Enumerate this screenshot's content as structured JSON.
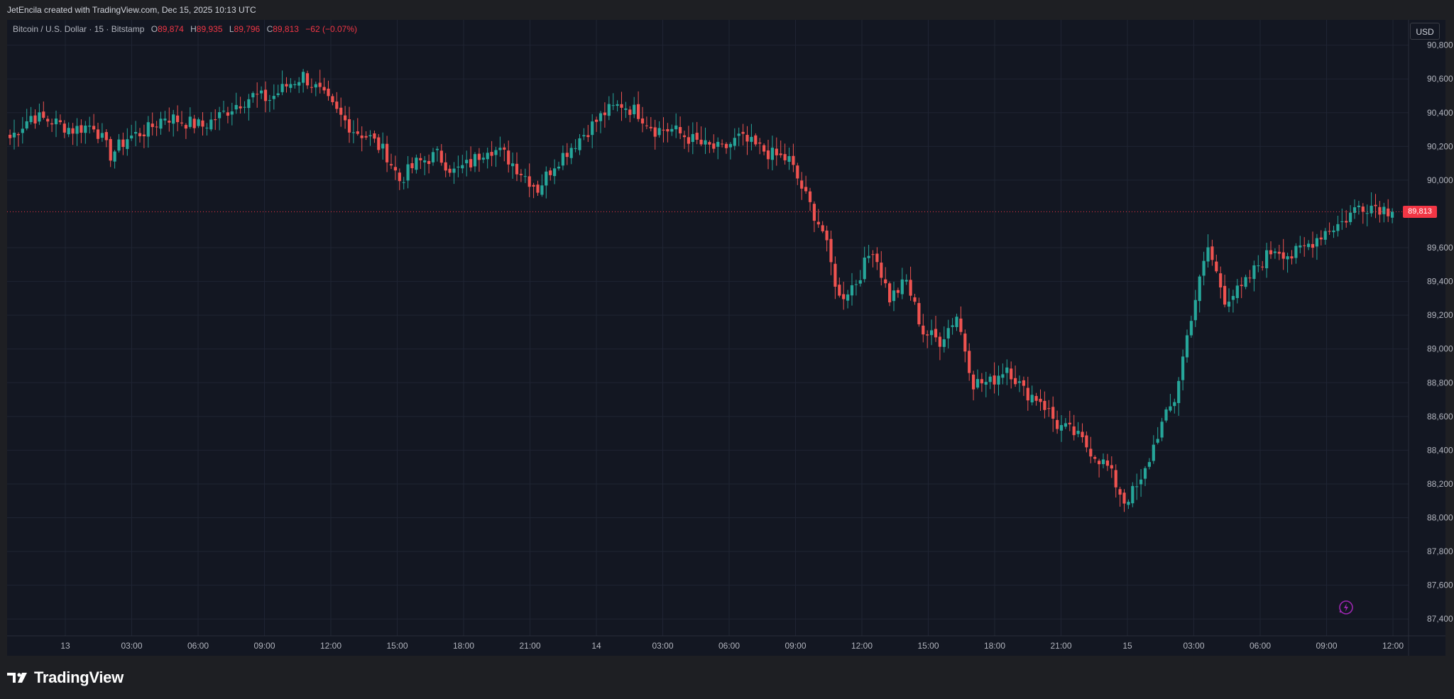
{
  "header": {
    "attribution": "JetEncila created with TradingView.com, Dec 15, 2025 10:13 UTC"
  },
  "legend": {
    "symbol": "Bitcoin / U.S. Dollar · 15 · Bitstamp",
    "open_label": "O",
    "open": "89,874",
    "high_label": "H",
    "high": "89,935",
    "low_label": "L",
    "low": "89,796",
    "close_label": "C",
    "close": "89,813",
    "change": "−62 (−0.07%)"
  },
  "currency_button": "USD",
  "last_price_tag": "89,813",
  "footer": {
    "brand": "TradingView"
  },
  "icons": {
    "logo": "tradingview-logo-icon",
    "flash": "flash-icon"
  },
  "colors": {
    "up": "#26a69a",
    "down": "#ef5350",
    "background": "#131722",
    "grid": "#1f2433",
    "tag": "#f23645"
  },
  "chart_data": {
    "type": "candlestick",
    "y_range": [
      87300,
      90950
    ],
    "y_ticks": [
      "90,800",
      "90,600",
      "90,400",
      "90,200",
      "90,000",
      "89,600",
      "89,400",
      "89,200",
      "89,000",
      "88,800",
      "88,600",
      "88,400",
      "88,200",
      "88,000",
      "87,800",
      "87,600",
      "87,400"
    ],
    "x_ticks": [
      "13",
      "03:00",
      "06:00",
      "09:00",
      "12:00",
      "15:00",
      "18:00",
      "21:00",
      "14",
      "03:00",
      "06:00",
      "09:00",
      "12:00",
      "15:00",
      "18:00",
      "21:00",
      "15",
      "03:00",
      "06:00",
      "09:00",
      "12:00"
    ],
    "last_price": 89813,
    "anchors": [
      [
        0,
        90250
      ],
      [
        5,
        90380
      ],
      [
        10,
        90350
      ],
      [
        15,
        90300
      ],
      [
        20,
        90330
      ],
      [
        24,
        90150
      ],
      [
        28,
        90250
      ],
      [
        33,
        90300
      ],
      [
        37,
        90380
      ],
      [
        41,
        90350
      ],
      [
        46,
        90320
      ],
      [
        50,
        90380
      ],
      [
        54,
        90450
      ],
      [
        58,
        90500
      ],
      [
        62,
        90480
      ],
      [
        66,
        90560
      ],
      [
        70,
        90620
      ],
      [
        74,
        90520
      ],
      [
        78,
        90400
      ],
      [
        82,
        90300
      ],
      [
        86,
        90250
      ],
      [
        90,
        90150
      ],
      [
        93,
        90000
      ],
      [
        97,
        90100
      ],
      [
        102,
        90150
      ],
      [
        106,
        90050
      ],
      [
        110,
        90100
      ],
      [
        114,
        90200
      ],
      [
        118,
        90150
      ],
      [
        122,
        90050
      ],
      [
        126,
        89950
      ],
      [
        130,
        90100
      ],
      [
        134,
        90200
      ],
      [
        138,
        90300
      ],
      [
        142,
        90400
      ],
      [
        146,
        90450
      ],
      [
        150,
        90400
      ],
      [
        154,
        90300
      ],
      [
        158,
        90300
      ],
      [
        162,
        90250
      ],
      [
        166,
        90200
      ],
      [
        170,
        90180
      ],
      [
        174,
        90250
      ],
      [
        178,
        90200
      ],
      [
        182,
        90150
      ],
      [
        186,
        90120
      ],
      [
        190,
        89900
      ],
      [
        194,
        89700
      ],
      [
        198,
        89300
      ],
      [
        202,
        89400
      ],
      [
        206,
        89600
      ],
      [
        210,
        89300
      ],
      [
        214,
        89400
      ],
      [
        218,
        89100
      ],
      [
        222,
        89050
      ],
      [
        226,
        89200
      ],
      [
        230,
        88800
      ],
      [
        234,
        88800
      ],
      [
        238,
        88900
      ],
      [
        242,
        88750
      ],
      [
        246,
        88700
      ],
      [
        250,
        88550
      ],
      [
        254,
        88500
      ],
      [
        258,
        88400
      ],
      [
        262,
        88300
      ],
      [
        266,
        88100
      ],
      [
        270,
        88200
      ],
      [
        274,
        88500
      ],
      [
        278,
        88700
      ],
      [
        282,
        89200
      ],
      [
        286,
        89600
      ],
      [
        290,
        89300
      ],
      [
        294,
        89350
      ],
      [
        298,
        89500
      ],
      [
        302,
        89600
      ],
      [
        306,
        89550
      ],
      [
        310,
        89620
      ],
      [
        314,
        89700
      ],
      [
        318,
        89750
      ],
      [
        322,
        89850
      ],
      [
        326,
        89850
      ],
      [
        330,
        89813
      ]
    ],
    "count": 331
  }
}
